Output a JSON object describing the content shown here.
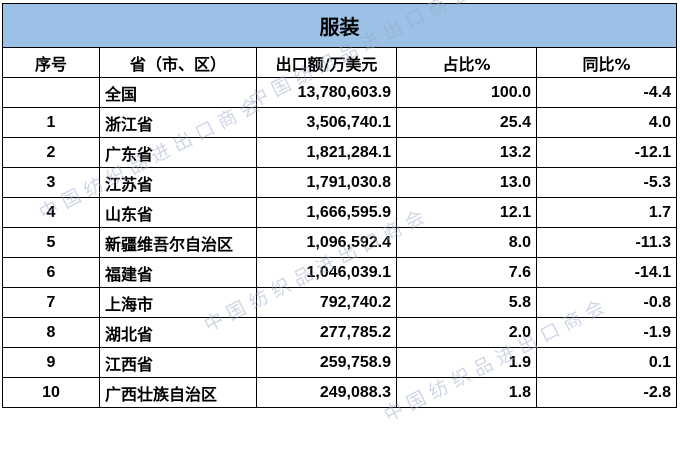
{
  "table": {
    "title": "服装",
    "headers": [
      "序号",
      "省（市、区）",
      "出口额/万美元",
      "占比%",
      "同比%"
    ],
    "rows": [
      {
        "no": "",
        "province": "全国",
        "export": "13,780,603.9",
        "share": "100.0",
        "yoy": "-4.4"
      },
      {
        "no": "1",
        "province": "浙江省",
        "export": "3,506,740.1",
        "share": "25.4",
        "yoy": "4.0"
      },
      {
        "no": "2",
        "province": "广东省",
        "export": "1,821,284.1",
        "share": "13.2",
        "yoy": "-12.1"
      },
      {
        "no": "3",
        "province": "江苏省",
        "export": "1,791,030.8",
        "share": "13.0",
        "yoy": "-5.3"
      },
      {
        "no": "4",
        "province": "山东省",
        "export": "1,666,595.9",
        "share": "12.1",
        "yoy": "1.7"
      },
      {
        "no": "5",
        "province": "新疆维吾尔自治区",
        "export": "1,096,592.4",
        "share": "8.0",
        "yoy": "-11.3"
      },
      {
        "no": "6",
        "province": "福建省",
        "export": "1,046,039.1",
        "share": "7.6",
        "yoy": "-14.1"
      },
      {
        "no": "7",
        "province": "上海市",
        "export": "792,740.2",
        "share": "5.8",
        "yoy": "-0.8"
      },
      {
        "no": "8",
        "province": "湖北省",
        "export": "277,785.2",
        "share": "2.0",
        "yoy": "-1.9"
      },
      {
        "no": "9",
        "province": "江西省",
        "export": "259,758.9",
        "share": "1.9",
        "yoy": "0.1"
      },
      {
        "no": "10",
        "province": "广西壮族自治区",
        "export": "249,088.3",
        "share": "1.8",
        "yoy": "-2.8"
      }
    ]
  },
  "watermark": {
    "text": "中国纺织品进出口商会"
  },
  "colors": {
    "title_fill": "#9bc2e6",
    "border": "#000000"
  }
}
